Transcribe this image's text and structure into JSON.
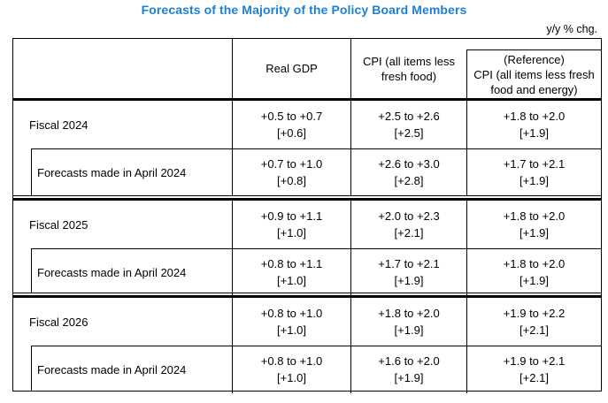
{
  "title": "Forecasts of the Majority of the Policy Board Members",
  "unit_note": "y/y % chg.",
  "colors": {
    "title_blue": "#1e80d0",
    "border": "#000000",
    "text": "#000000"
  },
  "table": {
    "header": {
      "row_label": "",
      "real_gdp": "Real GDP",
      "cpi": "CPI (all items less fresh food)",
      "reference_line1": "(Reference)",
      "reference_line2": "CPI (all items less fresh food and energy)"
    },
    "sections": [
      {
        "rows": [
          {
            "label": "Fiscal 2024",
            "cells": [
              {
                "range": "+0.5 to +0.7",
                "median": "[+0.6]"
              },
              {
                "range": "+2.5 to +2.6",
                "median": "[+2.5]"
              },
              {
                "range": "+1.8 to +2.0",
                "median": "[+1.9]"
              }
            ]
          },
          {
            "label": "Forecasts made in April 2024",
            "cells": [
              {
                "range": "+0.7 to +1.0",
                "median": "[+0.8]"
              },
              {
                "range": "+2.6 to +3.0",
                "median": "[+2.8]"
              },
              {
                "range": "+1.7 to +2.1",
                "median": "[+1.9]"
              }
            ]
          }
        ]
      },
      {
        "rows": [
          {
            "label": "Fiscal 2025",
            "cells": [
              {
                "range": "+0.9 to +1.1",
                "median": "[+1.0]"
              },
              {
                "range": "+2.0 to +2.3",
                "median": "[+2.1]"
              },
              {
                "range": "+1.8 to +2.0",
                "median": "[+1.9]"
              }
            ]
          },
          {
            "label": "Forecasts made in April 2024",
            "cells": [
              {
                "range": "+0.8 to +1.1",
                "median": "[+1.0]"
              },
              {
                "range": "+1.7 to +2.1",
                "median": "[+1.9]"
              },
              {
                "range": "+1.8 to +2.0",
                "median": "[+1.9]"
              }
            ]
          }
        ]
      },
      {
        "rows": [
          {
            "label": "Fiscal 2026",
            "cells": [
              {
                "range": "+0.8 to +1.0",
                "median": "[+1.0]"
              },
              {
                "range": "+1.8 to +2.0",
                "median": "[+1.9]"
              },
              {
                "range": "+1.9 to +2.2",
                "median": "[+2.1]"
              }
            ]
          },
          {
            "label": "Forecasts made in April 2024",
            "cells": [
              {
                "range": "+0.8 to +1.0",
                "median": "[+1.0]"
              },
              {
                "range": "+1.6 to +2.0",
                "median": "[+1.9]"
              },
              {
                "range": "+1.9 to +2.1",
                "median": "[+2.1]"
              }
            ]
          }
        ]
      }
    ]
  }
}
